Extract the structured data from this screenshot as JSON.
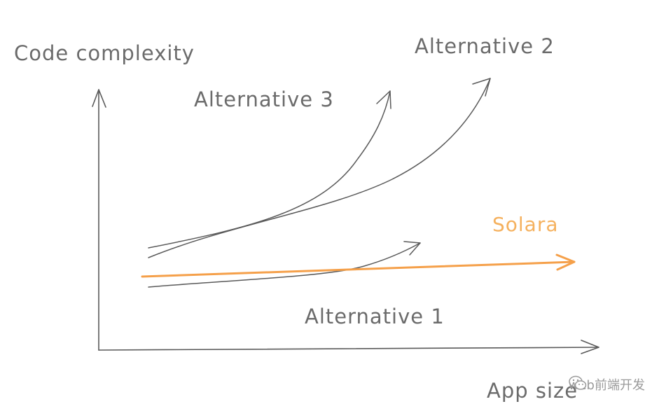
{
  "axes": {
    "y_label": "Code complexity",
    "x_label": "App size"
  },
  "curves": [
    {
      "name": "alternative-3",
      "label": "Alternative 3"
    },
    {
      "name": "alternative-2",
      "label": "Alternative 2"
    },
    {
      "name": "alternative-1",
      "label": "Alternative 1"
    },
    {
      "name": "solara",
      "label": "Solara"
    }
  ],
  "colors": {
    "line": "#555555",
    "text": "#6b6b6b",
    "solara": "#f5a04a"
  },
  "watermark": {
    "icon": "wechat-icon",
    "text": "web前端开发"
  }
}
